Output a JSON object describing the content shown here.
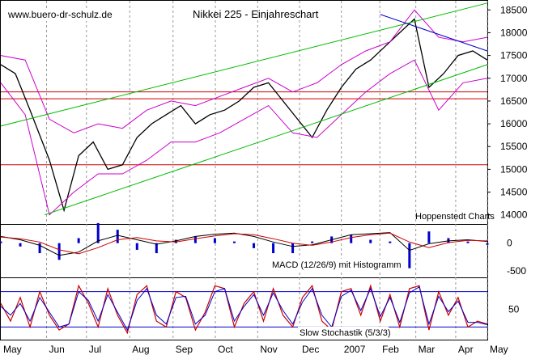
{
  "chart_data": {
    "type": "line",
    "title": "Nikkei 225 - Einjahreschart",
    "watermark": "www.buero-dr-schulz.de",
    "source_note": "Hoppenstedt Charts",
    "months": [
      "May",
      "Jun",
      "Jul",
      "Aug",
      "Sep",
      "Oct",
      "Nov",
      "Dec",
      "2007",
      "Feb",
      "Mar",
      "Apr",
      "May"
    ],
    "price_axis": {
      "ylim": [
        13800,
        18700
      ],
      "ticks": [
        "18500",
        "18000",
        "17500",
        "17000",
        "16500",
        "16000",
        "15500",
        "15000",
        "14500",
        "14000"
      ],
      "support_levels": [
        16700,
        16550,
        15100
      ],
      "series": [
        {
          "name": "Nikkei 225",
          "color": "#000000",
          "x": [
            0,
            3,
            6,
            10,
            13,
            16,
            19,
            22,
            25,
            28,
            31,
            34,
            37,
            40,
            43,
            46,
            49,
            52,
            55,
            58,
            61,
            64,
            67,
            70,
            73,
            76,
            79,
            82,
            85,
            88,
            91,
            94,
            97,
            100
          ],
          "y": [
            17300,
            17100,
            16300,
            15200,
            14100,
            15300,
            15600,
            15000,
            15100,
            15700,
            16000,
            16200,
            16400,
            16000,
            16200,
            16300,
            16500,
            16800,
            16900,
            16500,
            16100,
            15700,
            16300,
            16800,
            17200,
            17400,
            17700,
            18000,
            18300,
            16800,
            17100,
            17500,
            17600,
            17400
          ]
        },
        {
          "name": "Upper band",
          "color": "#cc00cc",
          "x": [
            0,
            5,
            10,
            15,
            20,
            25,
            30,
            35,
            40,
            45,
            50,
            55,
            60,
            65,
            70,
            75,
            80,
            85,
            90,
            95,
            100
          ],
          "y": [
            17500,
            17400,
            16100,
            15800,
            16000,
            15900,
            16300,
            16500,
            16400,
            16600,
            16800,
            17000,
            16700,
            16900,
            17300,
            17600,
            17800,
            18500,
            17900,
            17800,
            17900
          ]
        },
        {
          "name": "Lower band",
          "color": "#cc00cc",
          "x": [
            0,
            5,
            10,
            15,
            20,
            25,
            30,
            35,
            40,
            45,
            50,
            55,
            60,
            65,
            70,
            75,
            80,
            85,
            90,
            95,
            100
          ],
          "y": [
            16900,
            16200,
            14000,
            14500,
            14900,
            14900,
            15200,
            15600,
            15600,
            15800,
            16100,
            16400,
            15800,
            15700,
            16200,
            16700,
            17100,
            17400,
            16300,
            16900,
            17000
          ]
        },
        {
          "name": "Channel upper",
          "color": "#00bb00",
          "x": [
            0,
            100
          ],
          "y": [
            15950,
            18650
          ]
        },
        {
          "name": "Channel lower",
          "color": "#00bb00",
          "x": [
            9,
            100
          ],
          "y": [
            14000,
            17300
          ]
        },
        {
          "name": "Trend line",
          "color": "#0000cc",
          "x": [
            78,
            100
          ],
          "y": [
            18400,
            17600
          ]
        }
      ]
    },
    "macd_axis": {
      "ticks": [
        "0",
        "-500"
      ],
      "label": "MACD (12/26/9) mit Histogramm",
      "x": [
        0,
        4,
        8,
        12,
        16,
        20,
        24,
        28,
        32,
        36,
        40,
        44,
        48,
        52,
        56,
        60,
        64,
        68,
        72,
        76,
        80,
        84,
        88,
        92,
        96,
        100
      ],
      "macd": [
        120,
        60,
        -40,
        -220,
        -160,
        40,
        140,
        60,
        -20,
        40,
        120,
        160,
        180,
        120,
        20,
        -60,
        -30,
        60,
        150,
        170,
        190,
        -130,
        -10,
        40,
        60,
        30
      ],
      "signal": [
        110,
        80,
        20,
        -120,
        -190,
        -80,
        60,
        100,
        40,
        20,
        80,
        130,
        170,
        150,
        80,
        0,
        -40,
        20,
        100,
        150,
        180,
        20,
        -80,
        10,
        50,
        40
      ]
    },
    "stoch_axis": {
      "ticks": [
        "50"
      ],
      "label": "Slow Stochastik (5/3/3)",
      "levels": [
        80,
        20
      ],
      "x": [
        0,
        2,
        4,
        6,
        8,
        10,
        12,
        14,
        16,
        18,
        20,
        22,
        24,
        26,
        28,
        30,
        32,
        34,
        36,
        38,
        40,
        42,
        44,
        46,
        48,
        50,
        52,
        54,
        56,
        58,
        60,
        62,
        64,
        66,
        68,
        70,
        72,
        74,
        76,
        78,
        80,
        82,
        84,
        86,
        88,
        90,
        92,
        94,
        96,
        98,
        100
      ],
      "k": [
        60,
        30,
        70,
        20,
        80,
        40,
        15,
        25,
        90,
        60,
        20,
        85,
        40,
        10,
        75,
        90,
        30,
        20,
        80,
        70,
        15,
        45,
        90,
        85,
        20,
        60,
        80,
        30,
        85,
        40,
        20,
        70,
        90,
        30,
        15,
        80,
        85,
        40,
        90,
        30,
        75,
        20,
        85,
        90,
        15,
        80,
        40,
        70,
        20,
        30,
        25
      ],
      "d": [
        55,
        40,
        60,
        30,
        70,
        45,
        20,
        25,
        80,
        65,
        30,
        75,
        45,
        15,
        65,
        85,
        40,
        25,
        70,
        72,
        25,
        40,
        80,
        85,
        30,
        55,
        75,
        40,
        78,
        48,
        25,
        62,
        85,
        40,
        20,
        72,
        82,
        48,
        85,
        38,
        70,
        28,
        78,
        88,
        25,
        72,
        46,
        64,
        28,
        28,
        24
      ]
    }
  }
}
